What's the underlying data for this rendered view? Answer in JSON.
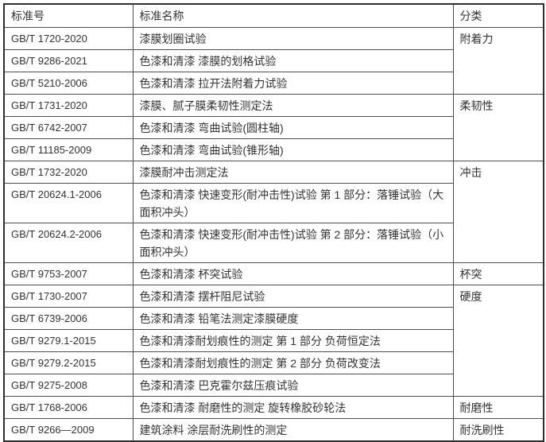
{
  "table": {
    "headers": {
      "code": "标准号",
      "name": "标准名称",
      "category": "分类"
    },
    "rows": [
      {
        "code": "GB/T 1720-2020",
        "name": "漆膜划圈试验",
        "category": "附着力",
        "category_rowspan": 3
      },
      {
        "code": "GB/T 9286-2021",
        "name": "色漆和清漆 漆膜的划格试验"
      },
      {
        "code": "GB/T 5210-2006",
        "name": "色漆和清漆 拉开法附着力试验"
      },
      {
        "code": "GB/T 1731-2020",
        "name": "漆膜、腻子膜柔韧性测定法",
        "category": "柔韧性",
        "category_rowspan": 3
      },
      {
        "code": "GB/T 6742-2007",
        "name": "色漆和清漆 弯曲试验(圆柱轴)"
      },
      {
        "code": "GB/T 11185-2009",
        "name": "色漆和清漆 弯曲试验(锥形轴)"
      },
      {
        "code": "GB/T 1732-2020",
        "name": "漆膜耐冲击测定法",
        "category": "冲击",
        "category_rowspan": 3
      },
      {
        "code": "GB/T 20624.1-2006",
        "name": "色漆和清漆 快速变形(耐冲击性)试验 第 1 部分：落锤试验（大面积冲头）"
      },
      {
        "code": "GB/T 20624.2-2006",
        "name": "色漆和清漆 快速变形(耐冲击性)试验 第 2 部分：落锤试验（小面积冲头）"
      },
      {
        "code": "GB/T 9753-2007",
        "name": "色漆和清漆 杯突试验",
        "category": "杯突",
        "category_rowspan": 1
      },
      {
        "code": "GB/T 1730-2007",
        "name": "色漆和清漆 摆杆阻尼试验",
        "category": "硬度",
        "category_rowspan": 5
      },
      {
        "code": "GB/T 6739-2006",
        "name": "色漆和清漆 铅笔法测定漆膜硬度"
      },
      {
        "code": "GB/T 9279.1-2015",
        "name": "色漆和清漆耐划痕性的测定 第 1 部分 负荷恒定法"
      },
      {
        "code": "GB/T 9279.2-2015",
        "name": "色漆和清漆耐划痕性的测定 第 2 部分 负荷改变法"
      },
      {
        "code": "GB/T 9275-2008",
        "name": "色漆和清漆 巴克霍尔兹压痕试验"
      },
      {
        "code": "GB/T 1768-2006",
        "name": "色漆和清漆 耐磨性的测定 旋转橡胶砂轮法",
        "category": "耐磨性",
        "category_rowspan": 1
      },
      {
        "code": "GB/T 9266—2009",
        "name": "建筑涂料 涂层耐洗刷性的测定",
        "category": "耐洗刷性",
        "category_rowspan": 1
      }
    ]
  },
  "colors": {
    "text": "#333333",
    "border_inner": "#4d4d4d",
    "border_outer": "#2e2e2e",
    "background": "#ffffff"
  }
}
